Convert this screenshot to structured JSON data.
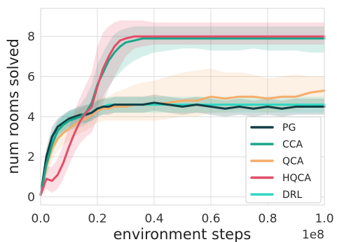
{
  "chart_data": {
    "type": "line",
    "xlabel": "environment steps",
    "ylabel": "num rooms solved",
    "x_offset_label": "1e8",
    "xlim": [
      0,
      1.0
    ],
    "ylim": [
      -0.4,
      9.4
    ],
    "xticks": [
      "0.0",
      "0.2",
      "0.4",
      "0.6",
      "0.8",
      "1.0"
    ],
    "yticks": [
      "0",
      "2",
      "4",
      "6",
      "8"
    ],
    "grid": true,
    "legend_position": "lower-right",
    "x": [
      0,
      0.02,
      0.04,
      0.06,
      0.08,
      0.1,
      0.12,
      0.14,
      0.16,
      0.18,
      0.2,
      0.22,
      0.24,
      0.26,
      0.28,
      0.3,
      0.33,
      0.36,
      0.4,
      0.45,
      0.5,
      0.55,
      0.6,
      0.65,
      0.7,
      0.75,
      0.8,
      0.85,
      0.9,
      0.95,
      1.0
    ],
    "series": [
      {
        "name": "PG",
        "color": "#123f45",
        "values": [
          0.1,
          2.0,
          3.0,
          3.5,
          3.7,
          3.9,
          4.0,
          4.1,
          4.1,
          4.2,
          4.4,
          4.5,
          4.5,
          4.6,
          4.6,
          4.6,
          4.6,
          4.6,
          4.7,
          4.6,
          4.5,
          4.6,
          4.5,
          4.4,
          4.5,
          4.4,
          4.5,
          4.4,
          4.5,
          4.5,
          4.5
        ],
        "upper": [
          0.3,
          2.4,
          3.5,
          3.9,
          4.1,
          4.3,
          4.4,
          4.5,
          4.6,
          4.6,
          4.8,
          4.9,
          4.9,
          5.0,
          5.0,
          5.0,
          5.0,
          5.0,
          5.1,
          5.0,
          4.9,
          5.0,
          4.9,
          4.8,
          4.9,
          4.8,
          4.9,
          4.8,
          4.9,
          4.9,
          4.9
        ],
        "lower": [
          0.0,
          1.6,
          2.5,
          3.1,
          3.3,
          3.5,
          3.6,
          3.7,
          3.7,
          3.8,
          4.0,
          4.1,
          4.1,
          4.2,
          4.2,
          4.2,
          4.2,
          4.2,
          4.3,
          4.2,
          4.1,
          4.2,
          4.1,
          4.0,
          4.1,
          4.0,
          4.1,
          4.0,
          4.1,
          4.1,
          4.1
        ]
      },
      {
        "name": "CCA",
        "color": "#1aa68a",
        "values": [
          0.1,
          1.6,
          2.6,
          3.3,
          3.6,
          3.8,
          3.9,
          4.0,
          4.2,
          4.7,
          5.6,
          6.2,
          6.8,
          7.2,
          7.5,
          7.7,
          7.8,
          7.9,
          7.9,
          7.9,
          7.9,
          7.9,
          7.9,
          7.9,
          7.9,
          7.9,
          7.9,
          7.9,
          7.9,
          7.9,
          7.9
        ],
        "upper": [
          0.4,
          2.1,
          3.1,
          3.8,
          4.1,
          4.3,
          4.4,
          4.6,
          5.0,
          5.6,
          6.6,
          7.2,
          7.7,
          8.1,
          8.3,
          8.4,
          8.5,
          8.5,
          8.5,
          8.5,
          8.5,
          8.5,
          8.5,
          8.5,
          8.5,
          8.5,
          8.5,
          8.5,
          8.5,
          8.5,
          8.5
        ],
        "lower": [
          0.0,
          1.1,
          2.1,
          2.8,
          3.1,
          3.3,
          3.4,
          3.5,
          3.6,
          3.9,
          4.5,
          5.0,
          5.5,
          5.9,
          6.2,
          6.5,
          6.8,
          7.0,
          7.2,
          7.3,
          7.4,
          7.4,
          7.3,
          7.3,
          7.3,
          7.4,
          7.3,
          7.3,
          7.3,
          7.2,
          7.2
        ]
      },
      {
        "name": "QCA",
        "color": "#f6ad6a",
        "values": [
          0.1,
          1.5,
          2.4,
          2.9,
          3.2,
          3.4,
          3.6,
          3.8,
          3.9,
          4.1,
          4.3,
          4.4,
          4.4,
          4.5,
          4.5,
          4.5,
          4.6,
          4.6,
          4.6,
          4.7,
          4.8,
          4.8,
          5.0,
          4.9,
          5.0,
          5.0,
          4.9,
          5.0,
          5.0,
          5.2,
          5.3
        ],
        "upper": [
          0.4,
          2.0,
          3.0,
          3.5,
          3.8,
          4.0,
          4.2,
          4.4,
          4.5,
          4.7,
          4.9,
          5.0,
          5.0,
          5.2,
          5.3,
          5.4,
          5.6,
          5.7,
          5.8,
          6.0,
          6.2,
          6.3,
          6.4,
          6.2,
          6.2,
          6.1,
          5.9,
          6.0,
          6.1,
          6.0,
          6.0
        ],
        "lower": [
          0.0,
          1.0,
          1.8,
          2.3,
          2.6,
          2.8,
          3.0,
          3.2,
          3.3,
          3.5,
          3.7,
          3.8,
          3.8,
          3.8,
          3.8,
          3.8,
          3.8,
          3.8,
          3.8,
          3.9,
          4.0,
          4.0,
          4.2,
          4.2,
          4.3,
          4.3,
          4.2,
          4.3,
          4.3,
          4.5,
          4.6
        ]
      },
      {
        "name": "HQCA",
        "color": "#e24d69",
        "values": [
          0.1,
          0.9,
          0.8,
          1.1,
          1.7,
          2.5,
          3.2,
          3.8,
          4.2,
          4.5,
          5.5,
          6.4,
          7.0,
          7.5,
          7.8,
          7.9,
          8.0,
          8.0,
          8.0,
          8.0,
          8.0,
          8.0,
          8.0,
          8.0,
          8.0,
          8.0,
          8.0,
          8.0,
          8.0,
          8.0,
          8.0
        ],
        "upper": [
          0.5,
          1.5,
          1.5,
          1.9,
          2.6,
          3.5,
          4.3,
          5.0,
          5.6,
          6.2,
          7.5,
          8.2,
          8.5,
          8.7,
          8.8,
          8.8,
          8.8,
          8.8,
          8.7,
          8.7,
          8.7,
          8.7,
          8.7,
          8.7,
          8.7,
          8.7,
          8.7,
          8.7,
          8.7,
          8.7,
          8.7
        ],
        "lower": [
          0.0,
          0.4,
          0.2,
          0.4,
          0.9,
          1.6,
          2.2,
          2.7,
          3.0,
          3.2,
          3.9,
          4.7,
          5.4,
          6.0,
          6.5,
          7.0,
          7.4,
          7.5,
          7.6,
          7.6,
          7.6,
          7.6,
          7.6,
          7.6,
          7.6,
          7.6,
          7.6,
          7.6,
          7.6,
          7.6,
          7.6
        ]
      },
      {
        "name": "DRL",
        "color": "#2ed8c2",
        "values": [
          0.1,
          1.8,
          2.8,
          3.3,
          3.6,
          3.8,
          3.9,
          4.0,
          4.1,
          4.2,
          4.4,
          4.5,
          4.6,
          4.6,
          4.6,
          4.6,
          4.6,
          4.6,
          4.6,
          4.6,
          4.6,
          4.6,
          4.6,
          4.6,
          4.6,
          4.6,
          4.6,
          4.6,
          4.6,
          4.6,
          4.6
        ],
        "upper": [
          0.3,
          2.2,
          3.2,
          3.7,
          4.0,
          4.2,
          4.3,
          4.4,
          4.5,
          4.6,
          4.8,
          4.9,
          5.0,
          5.0,
          5.0,
          5.0,
          5.0,
          5.0,
          5.0,
          5.0,
          5.0,
          5.0,
          5.0,
          5.0,
          5.0,
          5.0,
          5.0,
          5.0,
          5.0,
          5.0,
          5.0
        ],
        "lower": [
          0.0,
          1.4,
          2.4,
          2.9,
          3.2,
          3.4,
          3.5,
          3.6,
          3.7,
          3.8,
          4.0,
          4.1,
          4.2,
          4.2,
          4.2,
          4.2,
          4.2,
          4.2,
          4.2,
          4.2,
          4.2,
          4.2,
          4.2,
          4.2,
          4.2,
          4.2,
          4.2,
          4.2,
          4.2,
          4.2,
          4.2
        ]
      }
    ]
  }
}
